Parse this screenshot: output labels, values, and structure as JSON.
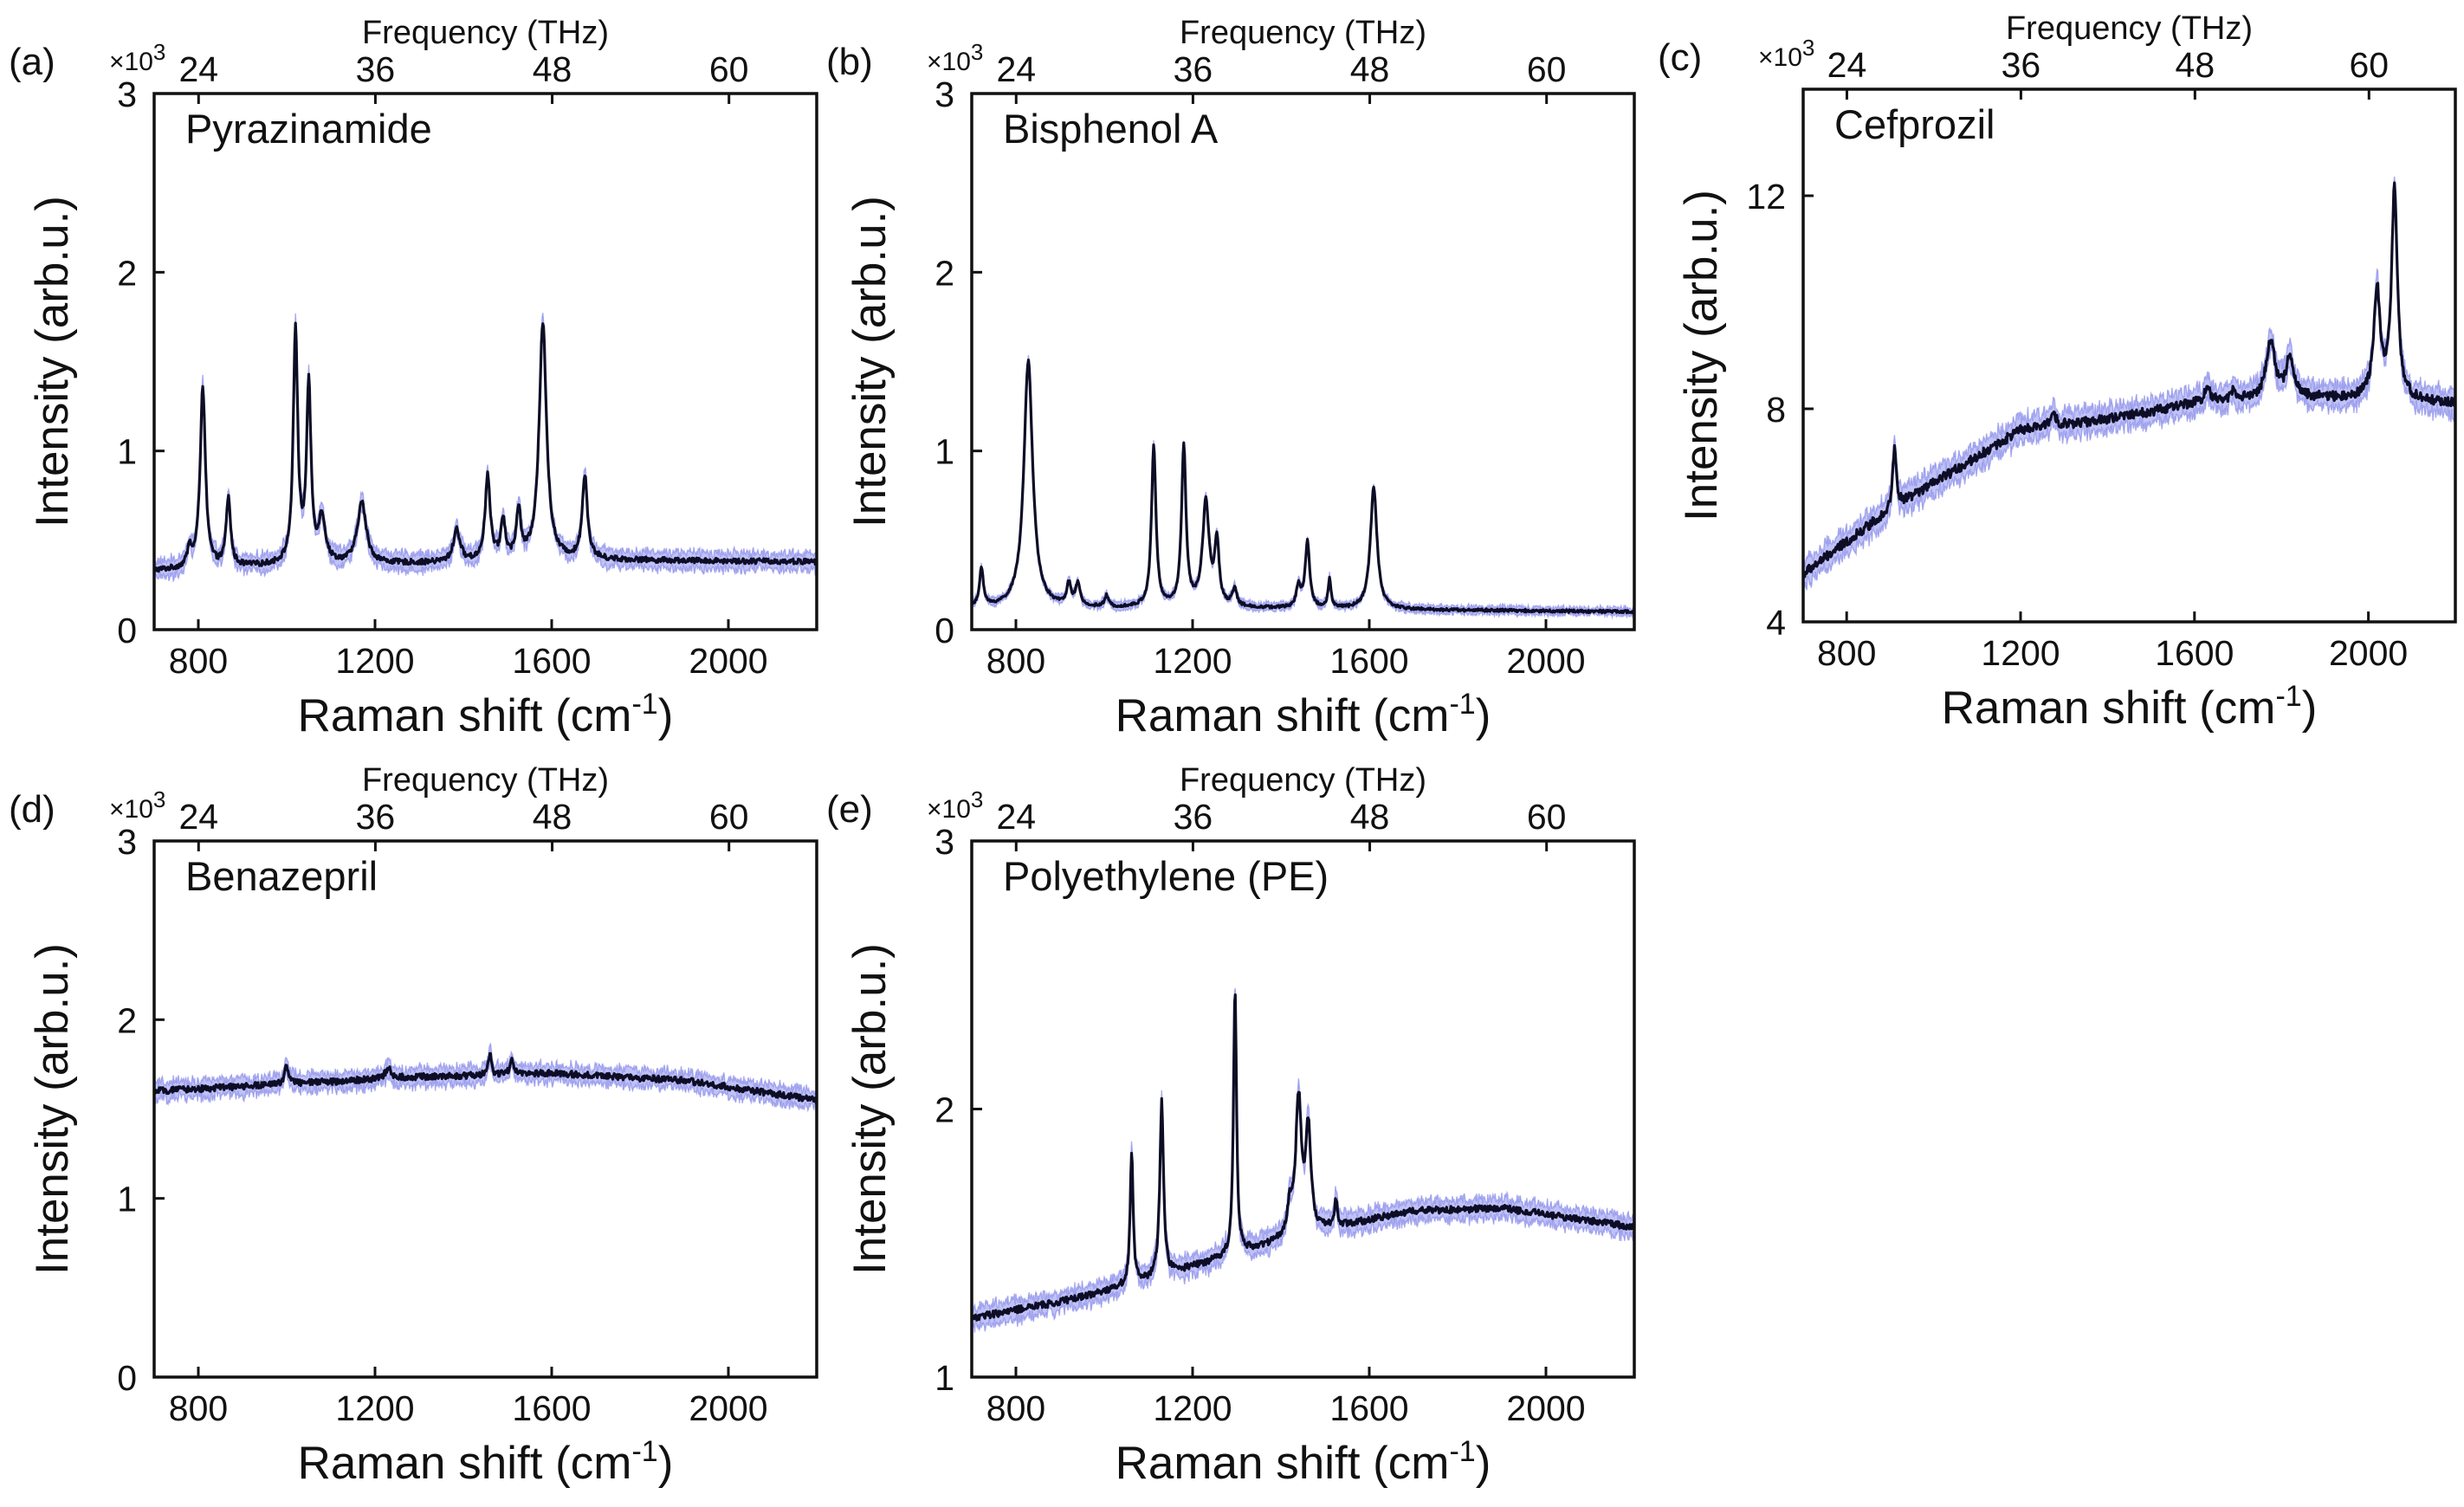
{
  "figure": {
    "top_axis_title": "Frequency (THz)",
    "x_axis_title": "Raman shift (cm",
    "x_axis_sup": "-1",
    "x_axis_close": ")",
    "y_axis_title": "Intensity (arb.u.)",
    "multiplier": "×10",
    "multiplier_exp": "3",
    "colors": {
      "trace": "#0d0d26",
      "error_band": "#8c8ff0",
      "axes": "#111111"
    }
  },
  "chart_data": [
    {
      "panel": "(a)",
      "title": "Pyrazinamide",
      "type": "line",
      "xlabel": "Raman shift (cm-1)",
      "ylabel": "Intensity (arb.u.)",
      "top_xlabel": "Frequency (THz)",
      "xlim": [
        700,
        2200
      ],
      "ylim": [
        0,
        3
      ],
      "y_scale": "×10^3",
      "xticks": [
        800,
        1200,
        1600,
        2000
      ],
      "yticks": [
        0,
        1,
        2,
        3
      ],
      "top_ticks_thz": [
        24,
        36,
        48,
        60
      ],
      "baseline": [
        [
          700,
          0.33
        ],
        [
          1000,
          0.36
        ],
        [
          1300,
          0.37
        ],
        [
          1700,
          0.39
        ],
        [
          2200,
          0.38
        ]
      ],
      "peaks": [
        {
          "x": 780,
          "h": 0.1,
          "w": 6
        },
        {
          "x": 810,
          "h": 1.02,
          "w": 7
        },
        {
          "x": 868,
          "h": 0.38,
          "w": 6
        },
        {
          "x": 1020,
          "h": 1.3,
          "w": 6
        },
        {
          "x": 1050,
          "h": 0.98,
          "w": 6
        },
        {
          "x": 1080,
          "h": 0.25,
          "w": 9
        },
        {
          "x": 1170,
          "h": 0.34,
          "w": 12
        },
        {
          "x": 1385,
          "h": 0.18,
          "w": 9
        },
        {
          "x": 1455,
          "h": 0.47,
          "w": 7
        },
        {
          "x": 1490,
          "h": 0.22,
          "w": 6
        },
        {
          "x": 1525,
          "h": 0.27,
          "w": 6
        },
        {
          "x": 1580,
          "h": 1.33,
          "w": 10
        },
        {
          "x": 1675,
          "h": 0.47,
          "w": 7
        }
      ],
      "noise": 0.015,
      "band": 0.045
    },
    {
      "panel": "(b)",
      "title": "Bisphenol A",
      "type": "line",
      "xlabel": "Raman shift (cm-1)",
      "ylabel": "Intensity (arb.u.)",
      "top_xlabel": "Frequency (THz)",
      "xlim": [
        700,
        2200
      ],
      "ylim": [
        0,
        3
      ],
      "y_scale": "×10^3",
      "xticks": [
        800,
        1200,
        1600,
        2000
      ],
      "yticks": [
        0,
        1,
        2,
        3
      ],
      "top_ticks_thz": [
        24,
        36,
        48,
        60
      ],
      "baseline": [
        [
          700,
          0.12
        ],
        [
          1300,
          0.12
        ],
        [
          2200,
          0.1
        ]
      ],
      "peaks": [
        {
          "x": 722,
          "h": 0.22,
          "w": 5
        },
        {
          "x": 828,
          "h": 1.38,
          "w": 12
        },
        {
          "x": 920,
          "h": 0.12,
          "w": 6
        },
        {
          "x": 940,
          "h": 0.12,
          "w": 6
        },
        {
          "x": 1005,
          "h": 0.06,
          "w": 5
        },
        {
          "x": 1112,
          "h": 0.9,
          "w": 6
        },
        {
          "x": 1180,
          "h": 0.9,
          "w": 6
        },
        {
          "x": 1230,
          "h": 0.58,
          "w": 9
        },
        {
          "x": 1255,
          "h": 0.35,
          "w": 6
        },
        {
          "x": 1295,
          "h": 0.1,
          "w": 6
        },
        {
          "x": 1440,
          "h": 0.12,
          "w": 6
        },
        {
          "x": 1460,
          "h": 0.37,
          "w": 6
        },
        {
          "x": 1510,
          "h": 0.16,
          "w": 4
        },
        {
          "x": 1610,
          "h": 0.68,
          "w": 9
        }
      ],
      "noise": 0.008,
      "band": 0.02
    },
    {
      "panel": "(c)",
      "title": "Cefprozil",
      "type": "line",
      "xlabel": "Raman shift (cm-1)",
      "ylabel": "Intensity (arb.u.)",
      "top_xlabel": "Frequency (THz)",
      "xlim": [
        700,
        2200
      ],
      "ylim": [
        4,
        14
      ],
      "y_scale": "×10^3",
      "xticks": [
        800,
        1200,
        1600,
        2000
      ],
      "yticks": [
        4,
        8,
        12
      ],
      "top_ticks_thz": [
        24,
        36,
        48,
        60
      ],
      "baseline": [
        [
          700,
          4.9
        ],
        [
          900,
          6.1
        ],
        [
          1000,
          6.6
        ],
        [
          1200,
          7.6
        ],
        [
          1400,
          7.8
        ],
        [
          1600,
          8.1
        ],
        [
          1800,
          8.2
        ],
        [
          2000,
          8.2
        ],
        [
          2200,
          8.1
        ]
      ],
      "peaks": [
        {
          "x": 910,
          "h": 1.1,
          "w": 5
        },
        {
          "x": 1275,
          "h": 0.25,
          "w": 8
        },
        {
          "x": 1630,
          "h": 0.3,
          "w": 8
        },
        {
          "x": 1690,
          "h": 0.2,
          "w": 8
        },
        {
          "x": 1775,
          "h": 1.1,
          "w": 12
        },
        {
          "x": 1820,
          "h": 0.75,
          "w": 10
        },
        {
          "x": 2020,
          "h": 2.0,
          "w": 9
        },
        {
          "x": 2060,
          "h": 3.9,
          "w": 8
        }
      ],
      "noise": 0.09,
      "band": 0.22
    },
    {
      "panel": "(d)",
      "title": "Benazepril",
      "type": "line",
      "xlabel": "Raman shift (cm-1)",
      "ylabel": "Intensity (arb.u.)",
      "top_xlabel": "Frequency (THz)",
      "xlim": [
        700,
        2200
      ],
      "ylim": [
        0,
        3
      ],
      "y_scale": "×10^3",
      "xticks": [
        800,
        1200,
        1600,
        2000
      ],
      "yticks": [
        0,
        1,
        2,
        3
      ],
      "top_ticks_thz": [
        24,
        36,
        48,
        60
      ],
      "baseline": [
        [
          700,
          1.6
        ],
        [
          1000,
          1.64
        ],
        [
          1300,
          1.68
        ],
        [
          1600,
          1.7
        ],
        [
          1900,
          1.66
        ],
        [
          2200,
          1.55
        ]
      ],
      "peaks": [
        {
          "x": 1000,
          "h": 0.1,
          "w": 6
        },
        {
          "x": 1230,
          "h": 0.06,
          "w": 8
        },
        {
          "x": 1460,
          "h": 0.12,
          "w": 4
        },
        {
          "x": 1510,
          "h": 0.08,
          "w": 5
        }
      ],
      "noise": 0.018,
      "band": 0.045
    },
    {
      "panel": "(e)",
      "title": "Polyethylene (PE)",
      "type": "line",
      "xlabel": "Raman shift (cm-1)",
      "ylabel": "Intensity (arb.u.)",
      "top_xlabel": "Frequency (THz)",
      "xlim": [
        700,
        2200
      ],
      "ylim": [
        1,
        3
      ],
      "y_scale": "×10^3",
      "xticks": [
        800,
        1200,
        1600,
        2000
      ],
      "yticks": [
        1,
        2,
        3
      ],
      "top_ticks_thz": [
        24,
        36,
        48,
        60
      ],
      "baseline": [
        [
          700,
          1.22
        ],
        [
          900,
          1.28
        ],
        [
          1100,
          1.36
        ],
        [
          1300,
          1.46
        ],
        [
          1500,
          1.55
        ],
        [
          1700,
          1.62
        ],
        [
          1900,
          1.63
        ],
        [
          2200,
          1.56
        ]
      ],
      "peaks": [
        {
          "x": 1062,
          "h": 0.5,
          "w": 4
        },
        {
          "x": 1130,
          "h": 0.65,
          "w": 5
        },
        {
          "x": 1296,
          "h": 1.0,
          "w": 4
        },
        {
          "x": 1420,
          "h": 0.1,
          "w": 6
        },
        {
          "x": 1440,
          "h": 0.5,
          "w": 8
        },
        {
          "x": 1462,
          "h": 0.38,
          "w": 7
        },
        {
          "x": 1525,
          "h": 0.1,
          "w": 4
        }
      ],
      "noise": 0.013,
      "band": 0.035
    }
  ]
}
